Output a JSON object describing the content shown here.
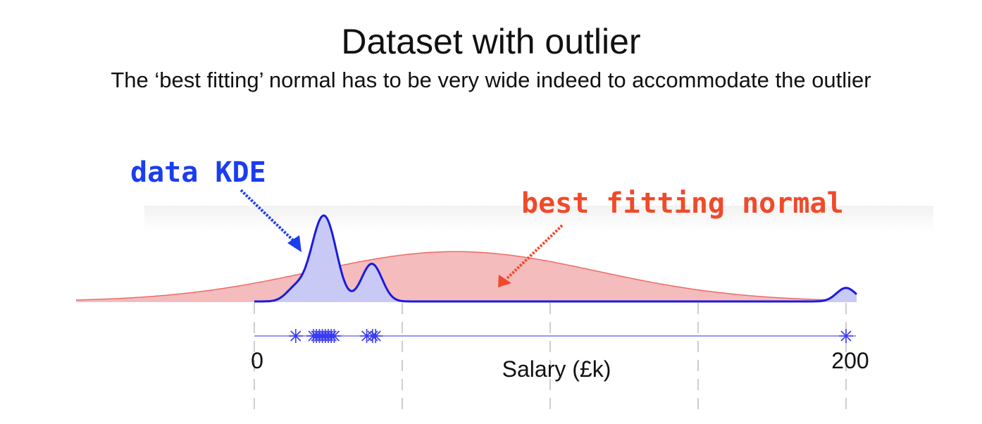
{
  "title": "Dataset with outlier",
  "subtitle": "The ‘best fitting’ normal has to be very wide indeed to accommodate the outlier",
  "colors": {
    "kde_fill": "#c9c9f6",
    "kde_line": "#1a1ae0",
    "normal_fill": "#f4bcbc",
    "normal_line": "#ef6a6a",
    "kde_annotation": "#1b3df0",
    "normal_annotation": "#f04a2a",
    "grid": "#bdbdbd",
    "rug": "#3b3bf0"
  },
  "chart_data": {
    "type": "area",
    "xlabel": "Salary (£k)",
    "ylabel": "",
    "xlim": [
      -60,
      205
    ],
    "tick_labels": [
      {
        "value": 0,
        "label": "0"
      },
      {
        "value": 200,
        "label": "200"
      }
    ],
    "grid_x": [
      0,
      50,
      100,
      150,
      200
    ],
    "grid": "vertical dashed",
    "annotations": [
      {
        "text": "data KDE",
        "target": "peak of data KDE"
      },
      {
        "text": "best fitting normal",
        "target": "normal curve"
      }
    ],
    "series": [
      {
        "kind": "normal",
        "mean": 68,
        "sd": 48,
        "relative_peak": 0.58
      },
      {
        "kind": "kde",
        "data_points": [
          14,
          20,
          21,
          22,
          23,
          24,
          25,
          26,
          27,
          38,
          40,
          41,
          200
        ],
        "relative_peak": 1.0
      }
    ],
    "rug": {
      "points": [
        14,
        20,
        21,
        22,
        23,
        24,
        25,
        26,
        27,
        38,
        40,
        41,
        200
      ],
      "line_range": [
        0,
        200
      ]
    }
  }
}
